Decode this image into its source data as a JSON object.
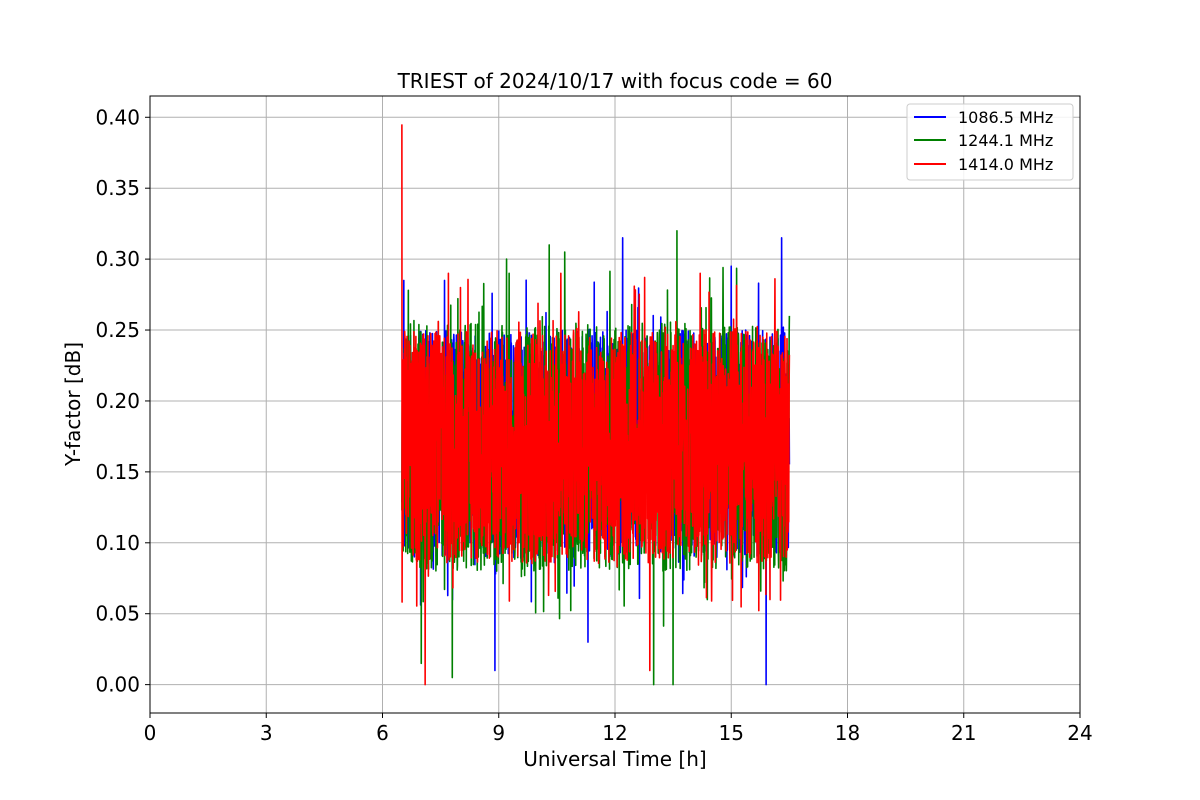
{
  "chart_data": {
    "type": "line",
    "title": "TRIEST of 2024/10/17 with focus code = 60",
    "xlabel": "Universal Time [h]",
    "ylabel": "Y-factor [dB]",
    "xlim": [
      0,
      24
    ],
    "ylim": [
      -0.02,
      0.415
    ],
    "xticks": [
      0,
      3,
      6,
      9,
      12,
      15,
      18,
      21,
      24
    ],
    "xtick_labels": [
      "0",
      "3",
      "6",
      "9",
      "12",
      "15",
      "18",
      "21",
      "24"
    ],
    "yticks": [
      0.0,
      0.05,
      0.1,
      0.15,
      0.2,
      0.25,
      0.3,
      0.35,
      0.4
    ],
    "ytick_labels": [
      "0.00",
      "0.05",
      "0.10",
      "0.15",
      "0.20",
      "0.25",
      "0.30",
      "0.35",
      "0.40"
    ],
    "grid": true,
    "legend_position": "top-right",
    "series": [
      {
        "name": "1086.5 MHz",
        "color": "#0000ff",
        "x_range": [
          6.5,
          16.5
        ],
        "band": [
          0.09,
          0.25
        ],
        "extremes": [
          [
            6.55,
            0.285
          ],
          [
            7.6,
            0.285
          ],
          [
            8.9,
            0.01
          ],
          [
            11.3,
            0.03
          ],
          [
            12.2,
            0.315
          ],
          [
            15.0,
            0.295
          ],
          [
            15.9,
            0.0
          ],
          [
            16.3,
            0.315
          ]
        ]
      },
      {
        "name": "1244.1 MHz",
        "color": "#008000",
        "x_range": [
          6.5,
          16.5
        ],
        "band": [
          0.08,
          0.255
        ],
        "extremes": [
          [
            7.0,
            0.015
          ],
          [
            7.8,
            0.005
          ],
          [
            9.2,
            0.3
          ],
          [
            10.3,
            0.31
          ],
          [
            10.7,
            0.305
          ],
          [
            13.0,
            0.0
          ],
          [
            13.5,
            0.0
          ],
          [
            13.6,
            0.32
          ],
          [
            16.5,
            0.26
          ]
        ]
      },
      {
        "name": "1414.0 MHz",
        "color": "#ff0000",
        "x_range": [
          6.5,
          16.5
        ],
        "band": [
          0.085,
          0.25
        ],
        "extremes": [
          [
            6.5,
            0.395
          ],
          [
            7.1,
            0.0
          ],
          [
            7.7,
            0.29
          ],
          [
            10.6,
            0.29
          ],
          [
            12.9,
            0.01
          ],
          [
            14.2,
            0.29
          ],
          [
            16.0,
            0.06
          ]
        ]
      }
    ]
  }
}
